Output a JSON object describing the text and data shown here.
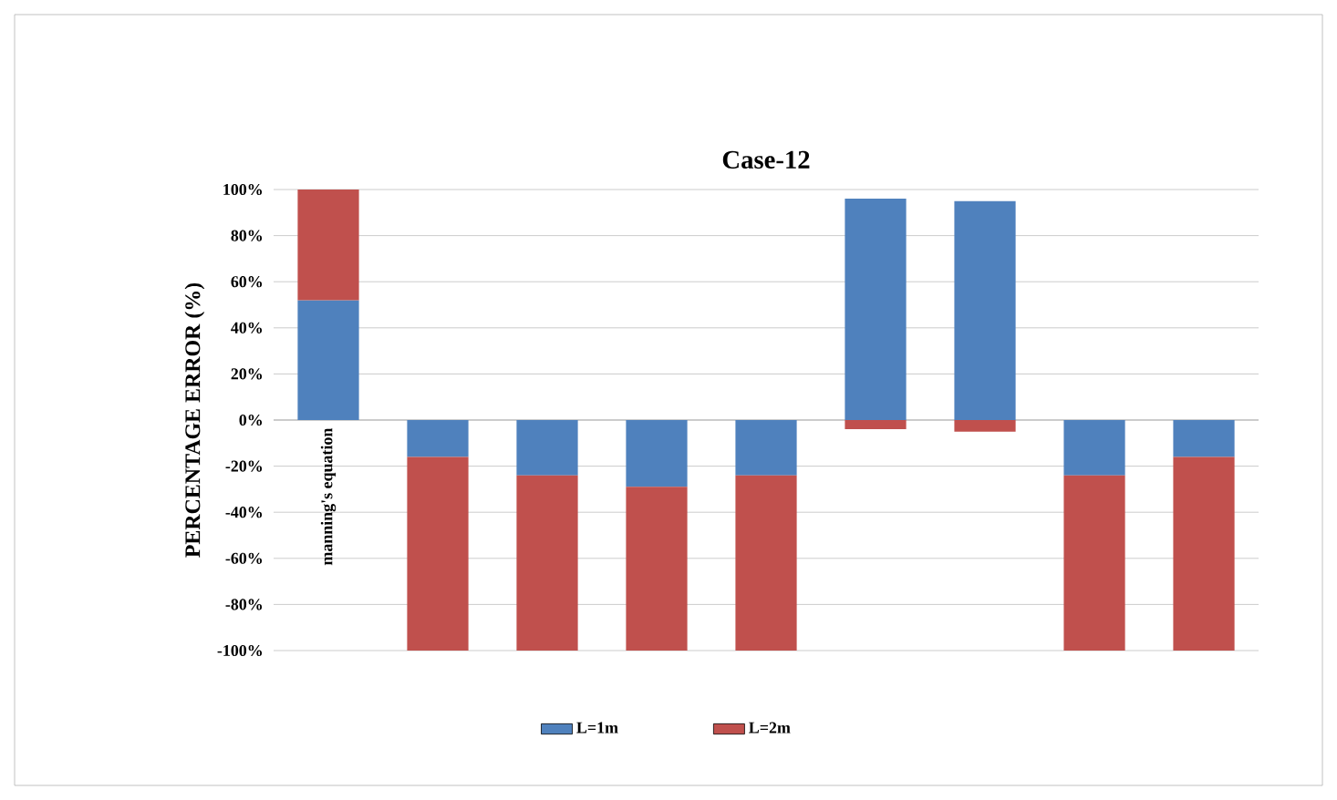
{
  "chart_data": {
    "type": "bar",
    "title": "Case-12",
    "ylabel": "PERCENTAGE ERROR (%)",
    "stacked": true,
    "categories": [
      "manning's equation",
      null,
      null,
      null,
      null,
      null,
      null,
      null,
      null
    ],
    "series": [
      {
        "name": "L=1m",
        "color": "#4f81bd",
        "values": [
          52,
          -16,
          -24,
          -29,
          -24,
          96,
          95,
          -24,
          -16
        ]
      },
      {
        "name": "L=2m",
        "color": "#c0504d",
        "values": [
          48,
          -84,
          -76,
          -71,
          -76,
          -4,
          -5,
          -76,
          -84
        ]
      }
    ],
    "ylim": [
      -100,
      100
    ],
    "yticks": [
      {
        "value": -100,
        "label": "-100%"
      },
      {
        "value": -80,
        "label": "-80%"
      },
      {
        "value": -60,
        "label": "-60%"
      },
      {
        "value": -40,
        "label": "-40%"
      },
      {
        "value": -20,
        "label": "-20%"
      },
      {
        "value": 0,
        "label": "0%"
      },
      {
        "value": 20,
        "label": "20%"
      },
      {
        "value": 40,
        "label": "40%"
      },
      {
        "value": 60,
        "label": "60%"
      },
      {
        "value": 80,
        "label": "80%"
      },
      {
        "value": 100,
        "label": "100%"
      }
    ],
    "grid": "y",
    "legend": "bottom"
  }
}
